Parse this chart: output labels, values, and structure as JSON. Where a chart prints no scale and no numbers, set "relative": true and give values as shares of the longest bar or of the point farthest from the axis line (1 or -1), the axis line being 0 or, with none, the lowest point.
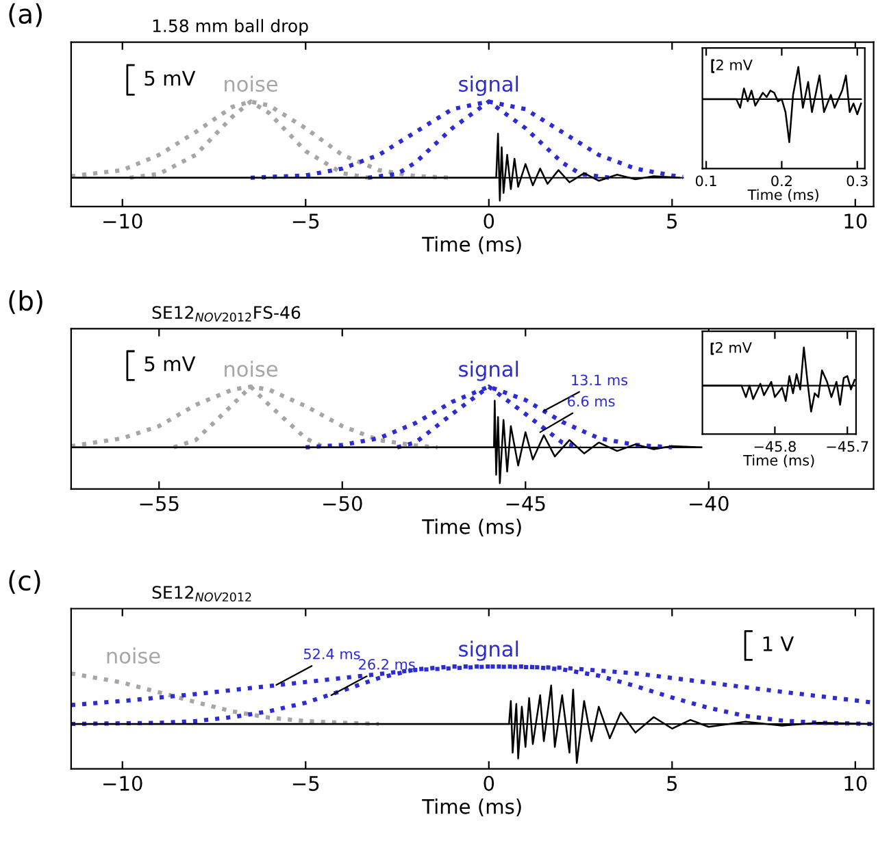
{
  "chart_data": [
    {
      "type": "line",
      "title": "1.58 mm ball drop",
      "xlabel": "Time (ms)",
      "ref_lines": [
        {
          "axis": "y",
          "value": 0
        }
      ],
      "relative": true,
      "xlim": [
        -11.4,
        10.5
      ],
      "xticks": [
        -10,
        -5,
        0,
        5,
        10
      ],
      "tick_labels": "x",
      "legend": false,
      "marker": "none",
      "annotations": [
        "(a)",
        "5 mV"
      ],
      "series": [
        {
          "name": "noise",
          "color": "#a6a6a6",
          "line_style": "dotted",
          "x": [
            -11.4,
            -10,
            -9,
            -8,
            -7,
            -6.5,
            -6,
            -5,
            -4,
            -3,
            -2,
            -1
          ],
          "values": [
            0.02,
            0.1,
            0.3,
            0.6,
            0.93,
            1,
            0.95,
            0.65,
            0.3,
            0.1,
            0.02,
            0
          ]
        },
        {
          "color": "#a6a6a6",
          "line_style": "dotted",
          "x": [
            -9.8,
            -9,
            -8,
            -7,
            -6.5,
            -6,
            -5,
            -4,
            -3.3
          ],
          "values": [
            0,
            0.05,
            0.3,
            0.8,
            1,
            0.85,
            0.35,
            0.06,
            0
          ]
        },
        {
          "name": "signal",
          "color": "#2b2bd9",
          "line_style": "dotted",
          "x": [
            -6.5,
            -5,
            -4,
            -3,
            -2,
            -1,
            0,
            1,
            2,
            3,
            4,
            5,
            5.3
          ],
          "values": [
            0,
            0.03,
            0.12,
            0.3,
            0.6,
            0.9,
            1,
            0.9,
            0.6,
            0.3,
            0.12,
            0.03,
            0.01
          ]
        },
        {
          "color": "#2b2bd9",
          "line_style": "dotted",
          "x": [
            -3.3,
            -2.5,
            -2,
            -1,
            0,
            1,
            2,
            2.5,
            3.3
          ],
          "values": [
            0,
            0.05,
            0.2,
            0.65,
            1,
            0.65,
            0.2,
            0.05,
            0
          ]
        },
        {
          "color": "#000000",
          "line_style": "solid",
          "x": [
            -11.4,
            0.2,
            0.25,
            0.3,
            0.35,
            0.4,
            0.5,
            0.6,
            0.7,
            0.8,
            1.0,
            1.2,
            1.4,
            1.6,
            1.9,
            2.2,
            2.6,
            3.0,
            3.5,
            4.0,
            4.5,
            5.2
          ],
          "values": [
            0,
            0,
            0.58,
            -0.3,
            0.4,
            -0.2,
            0.3,
            -0.15,
            0.25,
            -0.12,
            0.18,
            -0.1,
            0.12,
            -0.08,
            0.1,
            -0.06,
            0.06,
            -0.04,
            0.04,
            -0.02,
            0.02,
            0
          ]
        }
      ]
    },
    {
      "type": "line",
      "xlabel": "Time (ms)",
      "ref_lines": [
        {
          "axis": "y",
          "value": 0
        }
      ],
      "relative": true,
      "xlim": [
        0.095,
        0.31
      ],
      "xticks": [
        0.1,
        0.2,
        0.3
      ],
      "tick_labels": "x",
      "legend": false,
      "marker": "none",
      "annotations": [
        "2 mV"
      ],
      "series": [
        {
          "color": "#000000",
          "line_style": "solid",
          "x": [
            0.095,
            0.14,
            0.145,
            0.15,
            0.155,
            0.16,
            0.165,
            0.175,
            0.18,
            0.185,
            0.19,
            0.195,
            0.2,
            0.205,
            0.21,
            0.215,
            0.222,
            0.228,
            0.235,
            0.24,
            0.25,
            0.256,
            0.265,
            0.27,
            0.28,
            0.285,
            0.29,
            0.295,
            0.3,
            0.305
          ],
          "values": [
            0,
            0,
            -0.2,
            0.25,
            -0.05,
            0.2,
            -0.15,
            0.15,
            0.05,
            0.2,
            0.15,
            -0.05,
            0,
            -0.3,
            -1,
            0.1,
            0.75,
            -0.2,
            0.4,
            -0.3,
            0.55,
            -0.3,
            0.1,
            -0.2,
            0.2,
            0.55,
            -0.3,
            -0.1,
            -0.35,
            -0.1
          ]
        }
      ]
    },
    {
      "type": "line",
      "title": "SE12$_{NOV2012}$FS-46",
      "xlabel": "Time (ms)",
      "ref_lines": [
        {
          "axis": "y",
          "value": 0
        }
      ],
      "relative": true,
      "xlim": [
        -57.4,
        -35.5
      ],
      "xticks": [
        -55,
        -50,
        -45,
        -40
      ],
      "tick_labels": "x",
      "legend": false,
      "marker": "none",
      "annotations": [
        "(b)",
        "5 mV",
        {
          "text": "13.1 ms",
          "x": -44.5,
          "y": 0.6
        },
        {
          "text": "6.6 ms",
          "x": -44.6,
          "y": 0.25
        }
      ],
      "series": [
        {
          "name": "noise",
          "color": "#a6a6a6",
          "line_style": "dotted",
          "x": [
            -57.4,
            -56,
            -55,
            -54,
            -53,
            -52.5,
            -52,
            -51,
            -50,
            -49,
            -48,
            -47.4
          ],
          "values": [
            0.02,
            0.15,
            0.35,
            0.7,
            0.95,
            1,
            0.95,
            0.68,
            0.35,
            0.12,
            0.03,
            0
          ]
        },
        {
          "color": "#a6a6a6",
          "line_style": "dotted",
          "x": [
            -54.6,
            -54,
            -53,
            -52.5,
            -52,
            -51,
            -50.5
          ],
          "values": [
            0,
            0.12,
            0.7,
            1,
            0.7,
            0.15,
            0
          ]
        },
        {
          "name": "signal",
          "color": "#2b2bd9",
          "line_style": "dotted",
          "x": [
            -51,
            -50,
            -49,
            -48,
            -47,
            -46,
            -45,
            -44,
            -43,
            -42,
            -41
          ],
          "values": [
            0,
            0.04,
            0.15,
            0.4,
            0.75,
            1,
            0.78,
            0.42,
            0.15,
            0.04,
            0
          ]
        },
        {
          "color": "#2b2bd9",
          "line_style": "dotted",
          "x": [
            -48.5,
            -48,
            -47,
            -46,
            -45,
            -44,
            -43.5
          ],
          "values": [
            0,
            0.08,
            0.55,
            1,
            0.55,
            0.08,
            0
          ]
        },
        {
          "color": "#000000",
          "line_style": "solid",
          "x": [
            -57.4,
            -45.86,
            -45.84,
            -45.8,
            -45.75,
            -45.7,
            -45.6,
            -45.5,
            -45.4,
            -45.2,
            -45,
            -44.8,
            -44.5,
            -44.2,
            -43.8,
            -43.4,
            -43,
            -42.5,
            -42,
            -41.5,
            -41,
            -40.2
          ],
          "values": [
            0,
            0,
            0.77,
            -0.45,
            0.5,
            -0.59,
            0.45,
            -0.4,
            0.35,
            -0.3,
            0.25,
            -0.2,
            0.2,
            -0.15,
            0.12,
            -0.1,
            0.08,
            -0.06,
            0.05,
            -0.03,
            0.02,
            0
          ]
        }
      ]
    },
    {
      "type": "line",
      "xlabel": "Time (ms)",
      "ref_lines": [
        {
          "axis": "y",
          "value": 0
        }
      ],
      "relative": true,
      "xlim": [
        -45.9,
        -45.688
      ],
      "xticks": [
        -45.8,
        -45.7
      ],
      "tick_labels": "x",
      "legend": false,
      "marker": "none",
      "annotations": [
        "2 mV"
      ],
      "series": [
        {
          "color": "#000000",
          "line_style": "solid",
          "x": [
            -45.9,
            -45.846,
            -45.84,
            -45.835,
            -45.83,
            -45.82,
            -45.815,
            -45.805,
            -45.8,
            -45.79,
            -45.785,
            -45.78,
            -45.775,
            -45.77,
            -45.765,
            -45.76,
            -45.755,
            -45.75,
            -45.745,
            -45.74,
            -45.735,
            -45.728,
            -45.722,
            -45.715,
            -45.71,
            -45.705,
            -45.7,
            -45.695,
            -45.69
          ],
          "values": [
            0,
            0,
            -0.3,
            0,
            -0.35,
            0.05,
            -0.25,
            0.1,
            -0.3,
            -0.05,
            -0.4,
            0.25,
            -0.2,
            0.3,
            -0.1,
            1,
            0.1,
            -0.68,
            -0.2,
            -0.3,
            0.4,
            0.1,
            -0.3,
            0.1,
            -0.5,
            0.2,
            0.25,
            -0.1,
            0.15
          ]
        }
      ]
    },
    {
      "type": "line",
      "title": "SE12$_{NOV2012}$",
      "xlabel": "Time (ms)",
      "ref_lines": [
        {
          "axis": "y",
          "value": 0
        }
      ],
      "relative": true,
      "xlim": [
        -11.4,
        10.5
      ],
      "xticks": [
        -10,
        -5,
        0,
        5,
        10
      ],
      "tick_labels": "x",
      "legend": false,
      "marker": "none",
      "annotations": [
        "(c)",
        "1 V",
        {
          "text": "52.4 ms",
          "x": -5.8,
          "y": 0.68
        },
        {
          "text": "26.2 ms",
          "x": -4.3,
          "y": 0.5
        }
      ],
      "series": [
        {
          "name": "noise",
          "color": "#a6a6a6",
          "line_style": "dotted",
          "x": [
            -11.4,
            -10,
            -9,
            -8,
            -7,
            -6,
            -5,
            -4,
            -3
          ],
          "values": [
            0.88,
            0.72,
            0.55,
            0.38,
            0.22,
            0.11,
            0.05,
            0.02,
            0
          ]
        },
        {
          "name": "signal",
          "color": "#2b2bd9",
          "line_style": "dotted",
          "x": [
            -11.4,
            -10,
            -8,
            -6,
            -4,
            -2,
            0,
            2,
            4,
            6,
            8,
            10,
            10.5
          ],
          "values": [
            0.33,
            0.4,
            0.52,
            0.66,
            0.8,
            0.94,
            1,
            0.98,
            0.88,
            0.72,
            0.56,
            0.41,
            0.37
          ]
        },
        {
          "color": "#2b2bd9",
          "line_style": "dotted",
          "x": [
            -11.4,
            -9,
            -8,
            -7,
            -6,
            -5,
            -4,
            -3,
            -2,
            -1,
            1,
            2,
            3,
            4,
            5,
            6,
            7,
            8,
            9,
            10.5
          ],
          "values": [
            0,
            0.02,
            0.05,
            0.12,
            0.22,
            0.37,
            0.58,
            0.8,
            0.95,
            1,
            1,
            0.95,
            0.84,
            0.66,
            0.46,
            0.28,
            0.14,
            0.06,
            0.02,
            0
          ]
        },
        {
          "color": "#000000",
          "line_style": "solid",
          "x": [
            -11.4,
            0.55,
            0.6,
            0.65,
            0.75,
            0.8,
            0.9,
            1.0,
            1.1,
            1.2,
            1.4,
            1.5,
            1.7,
            1.8,
            2.0,
            2.2,
            2.3,
            2.4,
            2.6,
            2.8,
            3.0,
            3.3,
            3.6,
            4.0,
            4.5,
            5,
            5.5,
            6,
            7,
            8,
            9,
            10.5
          ],
          "values": [
            0,
            0,
            0.4,
            -0.5,
            0.35,
            -0.6,
            0.3,
            -0.4,
            0.45,
            -0.35,
            0.5,
            -0.3,
            0.67,
            -0.4,
            0.5,
            -0.5,
            0.6,
            -0.68,
            0.4,
            -0.3,
            0.3,
            -0.25,
            0.2,
            -0.15,
            0.12,
            -0.08,
            0.07,
            -0.05,
            0.04,
            -0.03,
            0.02,
            0
          ]
        }
      ]
    }
  ]
}
